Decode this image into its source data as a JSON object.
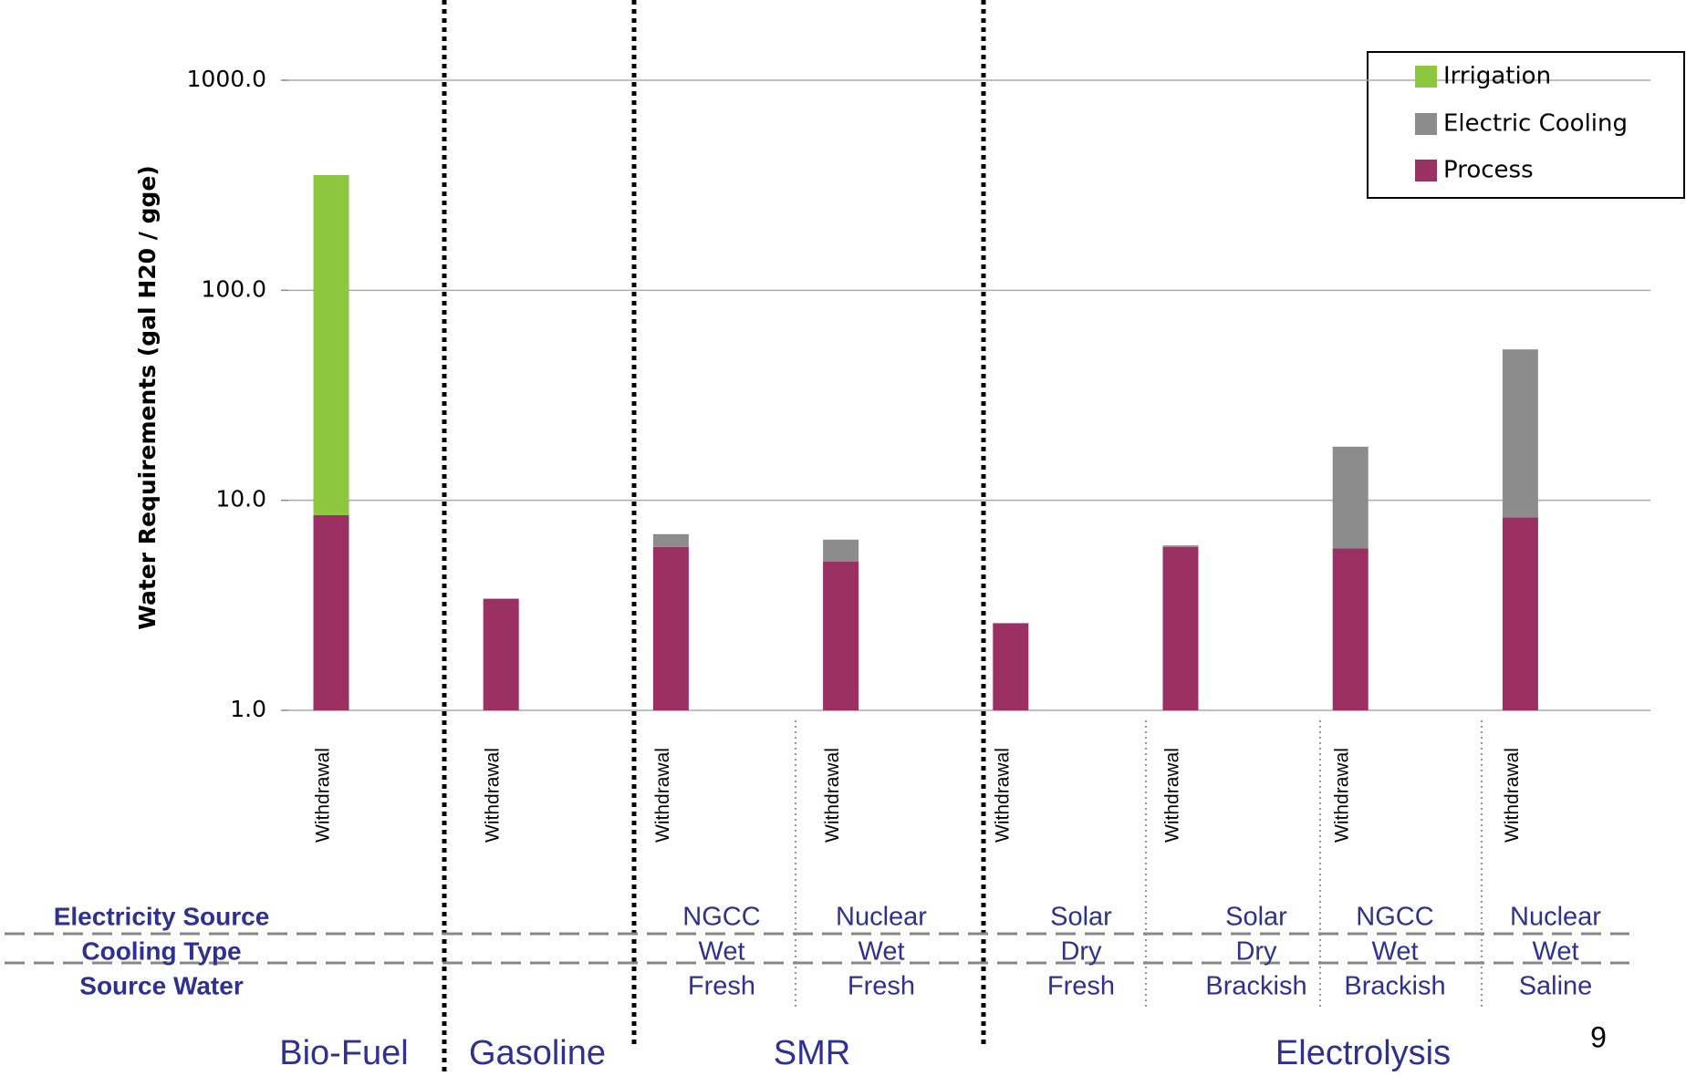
{
  "chart_data": {
    "type": "stacked-bar",
    "y_label": "Water Requirements (gal H20 / gge)",
    "log_scale": true,
    "grid": true,
    "legend_position": "top-right",
    "categories": [
      "Withdrawal",
      "Withdrawal",
      "Withdrawal",
      "Withdrawal",
      "Withdrawal",
      "Withdrawal",
      "Withdrawal",
      "Withdrawal"
    ],
    "series": [
      {
        "name": "Process",
        "color": "#9b3163",
        "values": [
          8.5,
          3.4,
          6.0,
          5.1,
          2.6,
          6.0,
          5.9,
          8.3
        ]
      },
      {
        "name": "Electric Cooling",
        "color": "#8c8c8c",
        "values": [
          0,
          0,
          0.9,
          1.4,
          0,
          0.1,
          12.1,
          44
        ]
      },
      {
        "name": "Irrigation",
        "color": "#8dc63f",
        "values": [
          345,
          0,
          0,
          0,
          0,
          0,
          0,
          0
        ]
      }
    ],
    "ylim": [
      1,
      1000
    ],
    "yticks": [
      {
        "value": 1,
        "label": "1.0"
      },
      {
        "value": 10,
        "label": "10.0"
      },
      {
        "value": 100,
        "label": "100.0"
      },
      {
        "value": 1000,
        "label": "1000.0"
      }
    ]
  },
  "table": {
    "row_labels": [
      "Electricity Source",
      "Cooling Type",
      "Source Water"
    ],
    "rows": [
      [
        null,
        null,
        "NGCC",
        "Nuclear",
        "Solar",
        "Solar",
        "NGCC",
        "Nuclear"
      ],
      [
        null,
        null,
        "Wet",
        "Wet",
        "Dry",
        "Dry",
        "Wet",
        "Wet"
      ],
      [
        null,
        null,
        "Fresh",
        "Fresh",
        "Fresh",
        "Brackish",
        "Brackish",
        "Saline"
      ]
    ]
  },
  "groups": [
    "Bio-Fuel",
    "Gasoline",
    "SMR",
    "Electrolysis"
  ],
  "page_number": "9"
}
